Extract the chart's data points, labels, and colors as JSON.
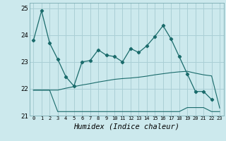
{
  "xlabel": "Humidex (Indice chaleur)",
  "xlim": [
    -0.5,
    23.5
  ],
  "ylim": [
    21,
    25.2
  ],
  "yticks": [
    21,
    22,
    23,
    24,
    25
  ],
  "xticks": [
    0,
    1,
    2,
    3,
    4,
    5,
    6,
    7,
    8,
    9,
    10,
    11,
    12,
    13,
    14,
    15,
    16,
    17,
    18,
    19,
    20,
    21,
    22,
    23
  ],
  "bg_color": "#cce9ed",
  "grid_color": "#aacfd5",
  "line_color": "#1a6b6b",
  "line1_x": [
    0,
    1,
    2,
    3,
    4,
    5,
    6,
    7,
    8,
    9,
    10,
    11,
    12,
    13,
    14,
    15,
    16,
    17,
    18,
    19,
    20,
    21,
    22
  ],
  "line1_y": [
    23.8,
    24.9,
    23.7,
    23.1,
    22.45,
    22.1,
    23.0,
    23.05,
    23.45,
    23.25,
    23.2,
    23.0,
    23.5,
    23.35,
    23.6,
    23.95,
    24.35,
    23.85,
    23.2,
    22.55,
    21.9,
    21.9,
    21.6
  ],
  "line2_x": [
    0,
    1,
    2,
    3,
    4,
    5,
    6,
    7,
    8,
    9,
    10,
    11,
    12,
    13,
    14,
    15,
    16,
    17,
    18,
    19,
    20,
    21,
    22,
    23
  ],
  "line2_y": [
    21.95,
    21.95,
    21.95,
    21.15,
    21.15,
    21.15,
    21.15,
    21.15,
    21.15,
    21.15,
    21.15,
    21.15,
    21.15,
    21.15,
    21.15,
    21.15,
    21.15,
    21.15,
    21.15,
    21.3,
    21.3,
    21.3,
    21.15,
    21.15
  ],
  "line3_x": [
    0,
    1,
    2,
    3,
    4,
    5,
    6,
    7,
    8,
    9,
    10,
    11,
    12,
    13,
    14,
    15,
    16,
    17,
    18,
    19,
    20,
    21,
    22,
    23
  ],
  "line3_y": [
    21.95,
    21.95,
    21.95,
    21.95,
    22.02,
    22.08,
    22.14,
    22.19,
    22.25,
    22.3,
    22.35,
    22.38,
    22.4,
    22.43,
    22.47,
    22.52,
    22.56,
    22.6,
    22.63,
    22.65,
    22.58,
    22.52,
    22.48,
    21.28
  ]
}
